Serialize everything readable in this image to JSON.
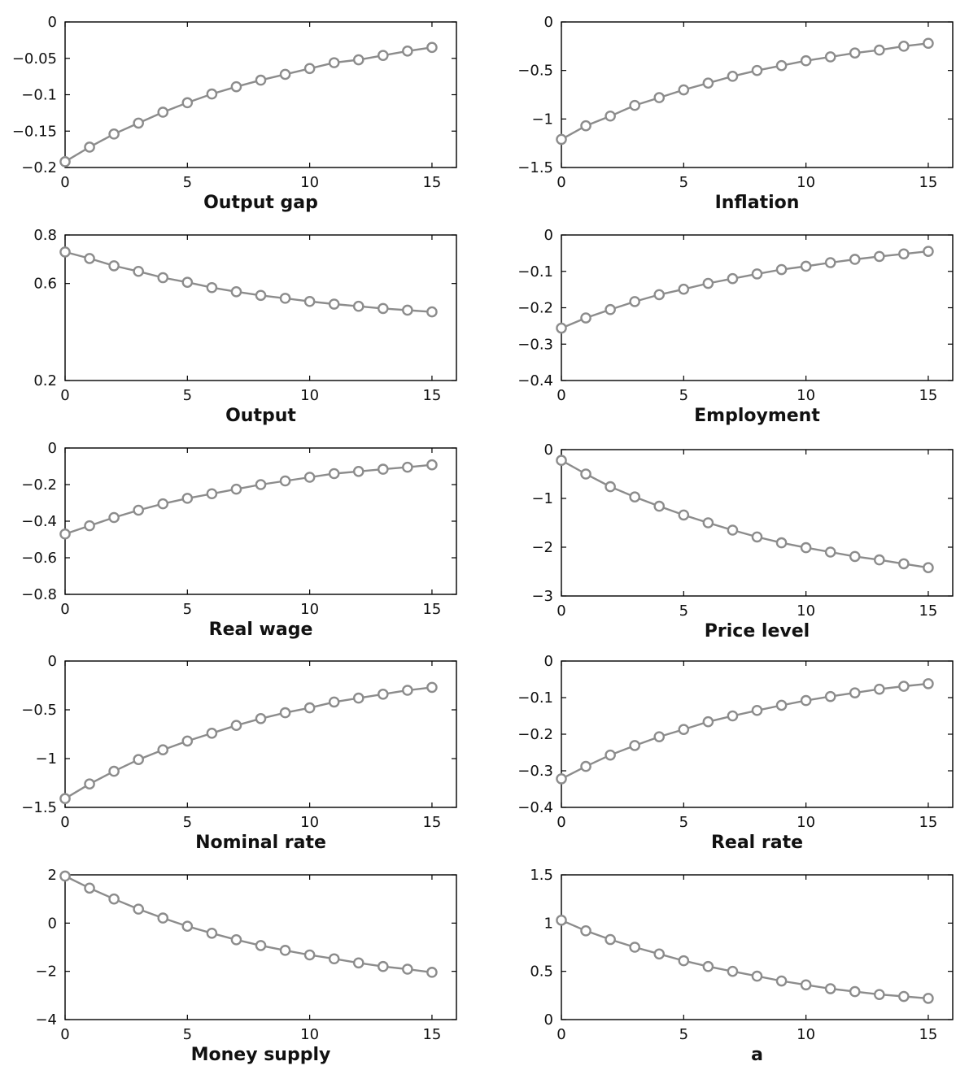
{
  "figure": {
    "layout": "5 rows x 2 columns of line plots"
  },
  "chart_data": [
    {
      "type": "line",
      "xlabel": "Output gap",
      "ylabel": "",
      "title": "",
      "xlim": [
        0,
        16
      ],
      "ylim": [
        -0.2,
        0
      ],
      "xticks": [
        0,
        5,
        10,
        15
      ],
      "xtick_labels": [
        "0",
        "5",
        "10",
        "15"
      ],
      "yticks": [
        0,
        -0.05,
        -0.1,
        -0.15,
        -0.2
      ],
      "ytick_labels": [
        "0",
        "−0.05",
        "−0.1",
        "−0.15",
        "−0.2"
      ],
      "x": [
        0,
        1,
        2,
        3,
        4,
        5,
        6,
        7,
        8,
        9,
        10,
        11,
        12,
        13,
        14,
        15
      ],
      "series": [
        {
          "name": "Output gap",
          "values": [
            -0.192,
            -0.172,
            -0.154,
            -0.139,
            -0.124,
            -0.111,
            -0.099,
            -0.089,
            -0.08,
            -0.072,
            -0.064,
            -0.056,
            -0.052,
            -0.046,
            -0.04,
            -0.035
          ]
        }
      ]
    },
    {
      "type": "line",
      "xlabel": "Inflation",
      "ylabel": "",
      "title": "",
      "xlim": [
        0,
        16
      ],
      "ylim": [
        -1.5,
        0
      ],
      "xticks": [
        0,
        5,
        10,
        15
      ],
      "xtick_labels": [
        "0",
        "5",
        "10",
        "15"
      ],
      "yticks": [
        0,
        -0.5,
        -1,
        -1.5
      ],
      "ytick_labels": [
        "0",
        "−0.5",
        "−1",
        "−1.5"
      ],
      "x": [
        0,
        1,
        2,
        3,
        4,
        5,
        6,
        7,
        8,
        9,
        10,
        11,
        12,
        13,
        14,
        15
      ],
      "series": [
        {
          "name": "Inflation",
          "values": [
            -1.21,
            -1.07,
            -0.97,
            -0.86,
            -0.78,
            -0.7,
            -0.63,
            -0.56,
            -0.5,
            -0.45,
            -0.4,
            -0.36,
            -0.32,
            -0.29,
            -0.25,
            -0.22
          ]
        }
      ]
    },
    {
      "type": "line",
      "xlabel": "Output",
      "ylabel": "",
      "title": "",
      "xlim": [
        0,
        16
      ],
      "ylim": [
        0.2,
        0.8
      ],
      "xticks": [
        0,
        5,
        10,
        15
      ],
      "xtick_labels": [
        "0",
        "5",
        "10",
        "15"
      ],
      "yticks": [
        0.8,
        0.6,
        0.2
      ],
      "ytick_labels": [
        "0.8",
        "0.6",
        "0.2"
      ],
      "x": [
        0,
        1,
        2,
        3,
        4,
        5,
        6,
        7,
        8,
        9,
        10,
        11,
        12,
        13,
        14,
        15
      ],
      "series": [
        {
          "name": "Output",
          "values": [
            0.73,
            0.703,
            0.673,
            0.65,
            0.624,
            0.605,
            0.583,
            0.566,
            0.551,
            0.539,
            0.526,
            0.515,
            0.506,
            0.497,
            0.49,
            0.483
          ]
        }
      ]
    },
    {
      "type": "line",
      "xlabel": "Employment",
      "ylabel": "",
      "title": "",
      "xlim": [
        0,
        16
      ],
      "ylim": [
        -0.4,
        0
      ],
      "xticks": [
        0,
        5,
        10,
        15
      ],
      "xtick_labels": [
        "0",
        "5",
        "10",
        "15"
      ],
      "yticks": [
        0,
        -0.1,
        -0.2,
        -0.3,
        -0.4
      ],
      "ytick_labels": [
        "0",
        "−0.1",
        "−0.2",
        "−0.3",
        "−0.4"
      ],
      "x": [
        0,
        1,
        2,
        3,
        4,
        5,
        6,
        7,
        8,
        9,
        10,
        11,
        12,
        13,
        14,
        15
      ],
      "series": [
        {
          "name": "Employment",
          "values": [
            -0.256,
            -0.228,
            -0.205,
            -0.183,
            -0.164,
            -0.149,
            -0.133,
            -0.12,
            -0.107,
            -0.095,
            -0.086,
            -0.076,
            -0.067,
            -0.059,
            -0.052,
            -0.045
          ]
        }
      ]
    },
    {
      "type": "line",
      "xlabel": "Real wage",
      "ylabel": "",
      "title": "",
      "xlim": [
        0,
        16
      ],
      "ylim": [
        -0.8,
        0
      ],
      "xticks": [
        0,
        5,
        10,
        15
      ],
      "xtick_labels": [
        "0",
        "5",
        "10",
        "15"
      ],
      "yticks": [
        0,
        -0.2,
        -0.4,
        -0.6,
        -0.8
      ],
      "ytick_labels": [
        "0",
        "−0.2",
        "−0.4",
        "−0.6",
        "−0.8"
      ],
      "x": [
        0,
        1,
        2,
        3,
        4,
        5,
        6,
        7,
        8,
        9,
        10,
        11,
        12,
        13,
        14,
        15
      ],
      "series": [
        {
          "name": "Real wage",
          "values": [
            -0.47,
            -0.425,
            -0.38,
            -0.34,
            -0.305,
            -0.275,
            -0.25,
            -0.225,
            -0.2,
            -0.18,
            -0.16,
            -0.14,
            -0.128,
            -0.116,
            -0.105,
            -0.092
          ]
        }
      ]
    },
    {
      "type": "line",
      "xlabel": "Price level",
      "ylabel": "",
      "title": "",
      "xlim": [
        0,
        16
      ],
      "ylim": [
        -3,
        0
      ],
      "xticks": [
        0,
        5,
        10,
        15
      ],
      "xtick_labels": [
        "0",
        "5",
        "10",
        "15"
      ],
      "yticks": [
        0,
        -1,
        -2,
        -3
      ],
      "ytick_labels": [
        "0",
        "−1",
        "−2",
        "−3"
      ],
      "x": [
        0,
        1,
        2,
        3,
        4,
        5,
        6,
        7,
        8,
        9,
        10,
        11,
        12,
        13,
        14,
        15
      ],
      "series": [
        {
          "name": "Price level",
          "values": [
            -0.22,
            -0.5,
            -0.76,
            -0.97,
            -1.16,
            -1.34,
            -1.5,
            -1.65,
            -1.79,
            -1.91,
            -2.01,
            -2.1,
            -2.19,
            -2.26,
            -2.34,
            -2.42
          ]
        }
      ]
    },
    {
      "type": "line",
      "xlabel": "Nominal rate",
      "ylabel": "",
      "title": "",
      "xlim": [
        0,
        16
      ],
      "ylim": [
        -1.5,
        0
      ],
      "xticks": [
        0,
        5,
        10,
        15
      ],
      "xtick_labels": [
        "0",
        "5",
        "10",
        "15"
      ],
      "yticks": [
        0,
        -0.5,
        -1,
        -1.5
      ],
      "ytick_labels": [
        "0",
        "−0.5",
        "−1",
        "−1.5"
      ],
      "x": [
        0,
        1,
        2,
        3,
        4,
        5,
        6,
        7,
        8,
        9,
        10,
        11,
        12,
        13,
        14,
        15
      ],
      "series": [
        {
          "name": "Nominal rate",
          "values": [
            -1.41,
            -1.26,
            -1.13,
            -1.01,
            -0.91,
            -0.82,
            -0.74,
            -0.66,
            -0.59,
            -0.53,
            -0.48,
            -0.42,
            -0.38,
            -0.34,
            -0.3,
            -0.27
          ]
        }
      ]
    },
    {
      "type": "line",
      "xlabel": "Real rate",
      "ylabel": "",
      "title": "",
      "xlim": [
        0,
        16
      ],
      "ylim": [
        -0.4,
        0
      ],
      "xticks": [
        0,
        5,
        10,
        15
      ],
      "xtick_labels": [
        "0",
        "5",
        "10",
        "15"
      ],
      "yticks": [
        0,
        -0.1,
        -0.2,
        -0.3,
        -0.4
      ],
      "ytick_labels": [
        "0",
        "−0.1",
        "−0.2",
        "−0.3",
        "−0.4"
      ],
      "x": [
        0,
        1,
        2,
        3,
        4,
        5,
        6,
        7,
        8,
        9,
        10,
        11,
        12,
        13,
        14,
        15
      ],
      "series": [
        {
          "name": "Real rate",
          "values": [
            -0.322,
            -0.288,
            -0.257,
            -0.231,
            -0.207,
            -0.187,
            -0.166,
            -0.15,
            -0.135,
            -0.121,
            -0.108,
            -0.097,
            -0.087,
            -0.077,
            -0.069,
            -0.062
          ]
        }
      ]
    },
    {
      "type": "line",
      "xlabel": "Money supply",
      "ylabel": "",
      "title": "",
      "xlim": [
        0,
        16
      ],
      "ylim": [
        -4,
        2
      ],
      "xticks": [
        0,
        5,
        10,
        15
      ],
      "xtick_labels": [
        "0",
        "5",
        "10",
        "15"
      ],
      "yticks": [
        2,
        0,
        -2,
        -4
      ],
      "ytick_labels": [
        "2",
        "0",
        "−2",
        "−4"
      ],
      "x": [
        0,
        1,
        2,
        3,
        4,
        5,
        6,
        7,
        8,
        9,
        10,
        11,
        12,
        13,
        14,
        15
      ],
      "series": [
        {
          "name": "Money supply",
          "values": [
            1.95,
            1.45,
            1.0,
            0.58,
            0.21,
            -0.13,
            -0.42,
            -0.69,
            -0.93,
            -1.13,
            -1.32,
            -1.48,
            -1.65,
            -1.8,
            -1.91,
            -2.04
          ]
        }
      ]
    },
    {
      "type": "line",
      "xlabel": "a",
      "ylabel": "",
      "title": "",
      "xlim": [
        0,
        16
      ],
      "ylim": [
        0,
        1.5
      ],
      "xticks": [
        0,
        5,
        10,
        15
      ],
      "xtick_labels": [
        "0",
        "5",
        "10",
        "15"
      ],
      "yticks": [
        1.5,
        1,
        0.5,
        0
      ],
      "ytick_labels": [
        "1.5",
        "1",
        "0.5",
        "0"
      ],
      "x": [
        0,
        1,
        2,
        3,
        4,
        5,
        6,
        7,
        8,
        9,
        10,
        11,
        12,
        13,
        14,
        15
      ],
      "series": [
        {
          "name": "a",
          "values": [
            1.03,
            0.92,
            0.83,
            0.75,
            0.68,
            0.61,
            0.55,
            0.5,
            0.45,
            0.4,
            0.36,
            0.32,
            0.29,
            0.26,
            0.24,
            0.22
          ]
        }
      ]
    }
  ]
}
